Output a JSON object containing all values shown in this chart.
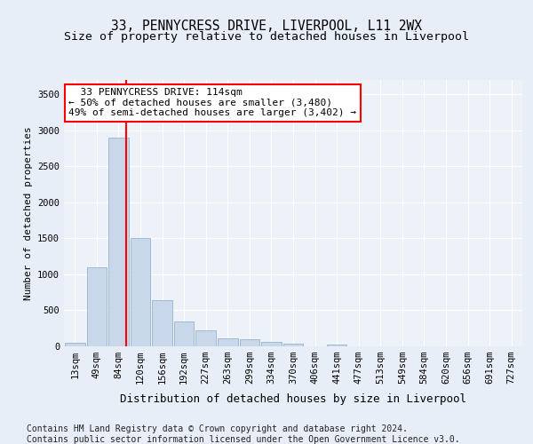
{
  "title": "33, PENNYCRESS DRIVE, LIVERPOOL, L11 2WX",
  "subtitle": "Size of property relative to detached houses in Liverpool",
  "xlabel": "Distribution of detached houses by size in Liverpool",
  "ylabel": "Number of detached properties",
  "footnote1": "Contains HM Land Registry data © Crown copyright and database right 2024.",
  "footnote2": "Contains public sector information licensed under the Open Government Licence v3.0.",
  "bar_labels": [
    "13sqm",
    "49sqm",
    "84sqm",
    "120sqm",
    "156sqm",
    "192sqm",
    "227sqm",
    "263sqm",
    "299sqm",
    "334sqm",
    "370sqm",
    "406sqm",
    "441sqm",
    "477sqm",
    "513sqm",
    "549sqm",
    "584sqm",
    "620sqm",
    "656sqm",
    "691sqm",
    "727sqm"
  ],
  "bar_values": [
    50,
    1100,
    2900,
    1500,
    640,
    340,
    220,
    110,
    95,
    60,
    35,
    5,
    30,
    5,
    2,
    0,
    0,
    0,
    0,
    0,
    0
  ],
  "bar_color": "#c8d8ea",
  "bar_edge_color": "#8aaac8",
  "vline_x_pos": 2.33,
  "vline_color": "red",
  "annotation_text": "  33 PENNYCRESS DRIVE: 114sqm  \n← 50% of detached houses are smaller (3,480)\n49% of semi-detached houses are larger (3,402) →",
  "ylim": [
    0,
    3700
  ],
  "yticks": [
    0,
    500,
    1000,
    1500,
    2000,
    2500,
    3000,
    3500
  ],
  "bg_color": "#e8eef8",
  "plot_bg": "#edf1f8",
  "title_fontsize": 10.5,
  "subtitle_fontsize": 9.5,
  "xlabel_fontsize": 9,
  "ylabel_fontsize": 8,
  "tick_fontsize": 7.5,
  "annotation_fontsize": 8,
  "footnote_fontsize": 7
}
